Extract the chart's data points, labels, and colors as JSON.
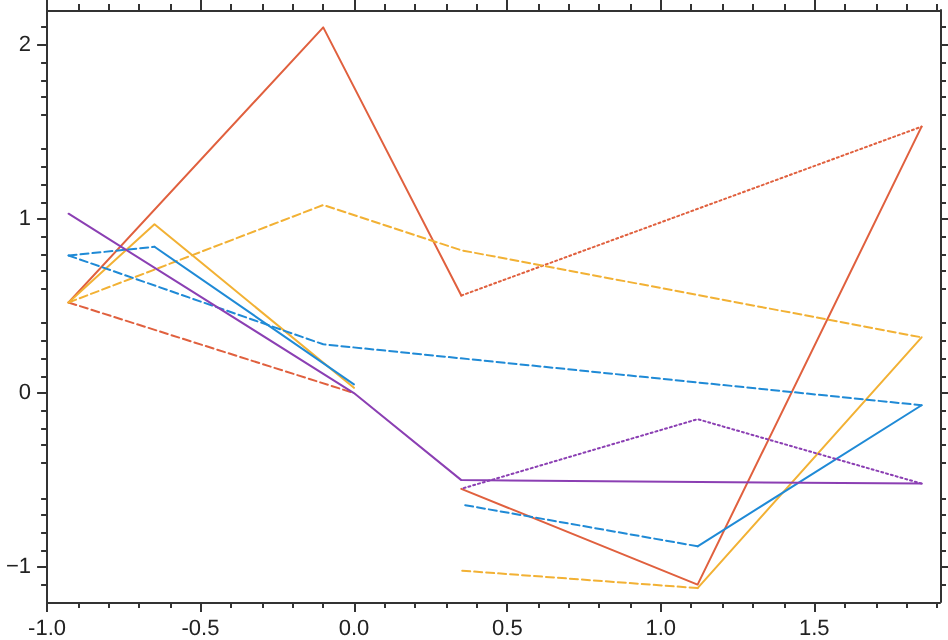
{
  "chart_data": {
    "type": "line",
    "marker": "none",
    "line_style": "solid",
    "grid": false,
    "xlim": [
      -1,
      1.91
    ],
    "ylim": [
      -1.2,
      2.2
    ],
    "xticks": [
      {
        "value": -1,
        "label": "-1.0"
      },
      {
        "value": -0.5,
        "label": "-0.5"
      },
      {
        "value": 0,
        "label": "0.0"
      },
      {
        "value": 0.5,
        "label": "0.5"
      },
      {
        "value": 1,
        "label": "1.0"
      },
      {
        "value": 1.5,
        "label": "1.5"
      }
    ],
    "yticks": [
      {
        "value": -1,
        "label": "−1"
      },
      0,
      1,
      2
    ],
    "series": [
      {
        "color": "#e0603e",
        "x": [
          -0.93,
          -0.1,
          0.35
        ],
        "values": [
          0.52,
          2.1,
          0.56
        ]
      },
      {
        "color": "#e0603e",
        "line_style": "dotted",
        "x": [
          0.35,
          1.85
        ],
        "values": [
          0.56,
          1.53
        ]
      },
      {
        "color": "#e0603e",
        "x": [
          1.85,
          1.12,
          0.35
        ],
        "values": [
          1.53,
          -1.1,
          -0.55
        ]
      },
      {
        "color": "#e0603e",
        "line_style": "dashed",
        "x": [
          -0.93,
          0
        ],
        "values": [
          0.52,
          0
        ]
      },
      {
        "color": "#f2b134",
        "line_style": "dashed",
        "x": [
          -0.93,
          -0.1,
          0.35,
          1.85
        ],
        "values": [
          0.52,
          1.08,
          0.82,
          0.32
        ]
      },
      {
        "color": "#f2b134",
        "x": [
          1.85,
          1.12
        ],
        "values": [
          0.32,
          -1.12
        ]
      },
      {
        "color": "#f2b134",
        "line_style": "dashed",
        "x": [
          1.12,
          0.35
        ],
        "values": [
          -1.12,
          -1.02
        ]
      },
      {
        "color": "#f2b134",
        "x": [
          0,
          -0.65,
          -0.93
        ],
        "values": [
          0.03,
          0.97,
          0.52
        ]
      },
      {
        "color": "#1f8ad6",
        "line_style": "dashed",
        "x": [
          -0.93,
          -0.65
        ],
        "values": [
          0.79,
          0.84
        ]
      },
      {
        "color": "#1f8ad6",
        "x": [
          -0.65,
          0
        ],
        "values": [
          0.84,
          0.05
        ]
      },
      {
        "color": "#1f8ad6",
        "line_style": "dashed",
        "x": [
          -0.93,
          -0.1,
          1.85
        ],
        "values": [
          0.79,
          0.28,
          -0.07
        ]
      },
      {
        "color": "#1f8ad6",
        "x": [
          1.85,
          1.12
        ],
        "values": [
          -0.07,
          -0.88
        ]
      },
      {
        "color": "#1f8ad6",
        "line_style": "dashed",
        "x": [
          1.12,
          0.35
        ],
        "values": [
          -0.88,
          -0.64
        ]
      },
      {
        "color": "#8b3fb3",
        "x": [
          -0.93,
          0,
          0.35,
          1.85
        ],
        "values": [
          1.03,
          0,
          -0.5,
          -0.52
        ]
      },
      {
        "color": "#8b3fb3",
        "line_style": "dotted",
        "x": [
          1.85,
          1.12,
          0.35
        ],
        "values": [
          -0.52,
          -0.15,
          -0.55
        ]
      }
    ]
  }
}
